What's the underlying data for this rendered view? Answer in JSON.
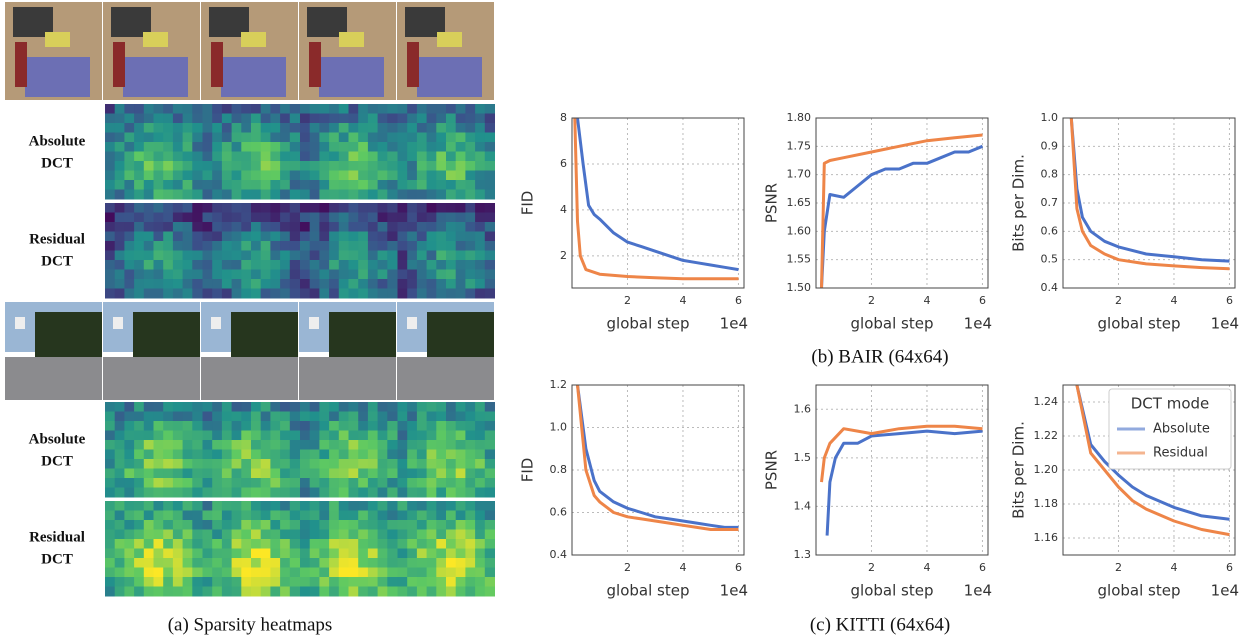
{
  "heatmaps": {
    "caption": "(a) Sparsity heatmaps",
    "row_labels": [
      [
        "Absolute",
        "DCT"
      ],
      [
        "Residual",
        "DCT"
      ],
      [
        "Absolute",
        "DCT"
      ],
      [
        "Residual",
        "DCT"
      ]
    ]
  },
  "captions": [
    "(b) BAIR (64x64)",
    "(c) KITTI (64x64)"
  ],
  "chart_data": [
    {
      "type": "line",
      "ylabel": "FID",
      "xlabel": "global step",
      "x_offset": "1e4",
      "grid": true,
      "xlim": [
        0,
        6.2
      ],
      "xticks": [
        2,
        4,
        6
      ],
      "ylim": [
        0.6,
        8
      ],
      "yticks": [
        2,
        4,
        6,
        8
      ],
      "series": [
        {
          "color": "#4a72c9",
          "x": [
            0.2,
            0.4,
            0.6,
            0.8,
            1,
            1.5,
            2,
            2.5,
            3,
            3.5,
            4,
            4.5,
            5,
            5.5,
            6
          ],
          "values": [
            8,
            6,
            4.2,
            3.8,
            3.6,
            3,
            2.6,
            2.4,
            2.2,
            2,
            1.8,
            1.7,
            1.6,
            1.5,
            1.4
          ]
        },
        {
          "color": "#ee8548",
          "x": [
            0.1,
            0.2,
            0.3,
            0.5,
            1,
            2,
            3,
            4,
            5,
            6
          ],
          "values": [
            8,
            3.5,
            2,
            1.4,
            1.2,
            1.1,
            1.05,
            1.0,
            1.0,
            1.0
          ]
        }
      ]
    },
    {
      "type": "line",
      "ylabel": "PSNR",
      "xlabel": "global step",
      "x_offset": "1e4",
      "grid": true,
      "xlim": [
        0,
        6.2
      ],
      "xticks": [
        2,
        4,
        6
      ],
      "ylim": [
        1.5,
        1.8
      ],
      "yticks": [
        {
          "value": 1.5,
          "label": "1.50"
        },
        1.55,
        {
          "value": 1.6,
          "label": "1.60"
        },
        1.65,
        {
          "value": 1.7,
          "label": "1.70"
        },
        1.75,
        {
          "value": 1.8,
          "label": "1.80"
        }
      ],
      "series": [
        {
          "color": "#4a72c9",
          "x": [
            0.2,
            0.3,
            0.5,
            1,
            1.5,
            2,
            2.5,
            3,
            3.5,
            4,
            4.5,
            5,
            5.5,
            6
          ],
          "values": [
            1.5,
            1.6,
            1.665,
            1.66,
            1.68,
            1.7,
            1.71,
            1.71,
            1.72,
            1.72,
            1.73,
            1.74,
            1.74,
            1.75
          ]
        },
        {
          "color": "#ee8548",
          "x": [
            0.2,
            0.3,
            0.5,
            1,
            2,
            3,
            4,
            5,
            6
          ],
          "values": [
            1.5,
            1.72,
            1.725,
            1.73,
            1.74,
            1.75,
            1.76,
            1.765,
            1.77
          ]
        }
      ]
    },
    {
      "type": "line",
      "ylabel": "Bits per Dim.",
      "xlabel": "global step",
      "x_offset": "1e4",
      "grid": true,
      "xlim": [
        0,
        6.2
      ],
      "xticks": [
        2,
        4,
        6
      ],
      "ylim": [
        0.4,
        1.0
      ],
      "yticks": [
        0.4,
        0.5,
        0.6,
        0.7,
        0.8,
        0.9,
        {
          "value": 1,
          "label": "1.0"
        }
      ],
      "series": [
        {
          "color": "#4a72c9",
          "x": [
            0.3,
            0.5,
            0.7,
            1,
            1.5,
            2,
            3,
            4,
            5,
            6
          ],
          "values": [
            1,
            0.75,
            0.65,
            0.6,
            0.565,
            0.545,
            0.52,
            0.51,
            0.5,
            0.495
          ]
        },
        {
          "color": "#ee8548",
          "x": [
            0.3,
            0.5,
            0.7,
            1,
            1.5,
            2,
            3,
            4,
            5,
            6
          ],
          "values": [
            1,
            0.68,
            0.6,
            0.55,
            0.52,
            0.5,
            0.485,
            0.478,
            0.472,
            0.468
          ]
        }
      ]
    },
    {
      "type": "line",
      "ylabel": "FID",
      "xlabel": "global step",
      "x_offset": "1e4",
      "grid": true,
      "xlim": [
        0,
        6.2
      ],
      "xticks": [
        2,
        4,
        6
      ],
      "ylim": [
        0.4,
        1.2
      ],
      "yticks": [
        0.4,
        0.6,
        0.8,
        {
          "value": 1,
          "label": "1.0"
        },
        1.2
      ],
      "series": [
        {
          "color": "#4a72c9",
          "x": [
            0.2,
            0.5,
            0.8,
            1,
            1.5,
            2,
            2.5,
            3,
            3.5,
            4,
            4.5,
            5,
            5.5,
            6
          ],
          "values": [
            1.2,
            0.9,
            0.75,
            0.7,
            0.65,
            0.62,
            0.6,
            0.58,
            0.57,
            0.56,
            0.55,
            0.54,
            0.53,
            0.53
          ]
        },
        {
          "color": "#ee8548",
          "x": [
            0.2,
            0.5,
            0.8,
            1,
            1.5,
            2,
            2.5,
            3,
            3.5,
            4,
            4.5,
            5,
            5.5,
            6
          ],
          "values": [
            1.2,
            0.8,
            0.68,
            0.65,
            0.6,
            0.58,
            0.57,
            0.56,
            0.55,
            0.54,
            0.53,
            0.52,
            0.52,
            0.52
          ]
        }
      ]
    },
    {
      "type": "line",
      "ylabel": "PSNR",
      "xlabel": "global step",
      "x_offset": "1e4",
      "grid": true,
      "xlim": [
        0,
        6.2
      ],
      "xticks": [
        2,
        4,
        6
      ],
      "ylim": [
        1.3,
        1.65
      ],
      "yticks": [
        1.3,
        1.4,
        1.5,
        1.6
      ],
      "series": [
        {
          "color": "#4a72c9",
          "x": [
            0.4,
            0.5,
            0.7,
            1,
            1.5,
            2,
            3,
            4,
            5,
            6
          ],
          "values": [
            1.34,
            1.45,
            1.5,
            1.53,
            1.53,
            1.545,
            1.55,
            1.555,
            1.55,
            1.555
          ]
        },
        {
          "color": "#ee8548",
          "x": [
            0.2,
            0.3,
            0.5,
            1,
            1.5,
            2,
            3,
            4,
            5,
            6
          ],
          "values": [
            1.45,
            1.5,
            1.53,
            1.56,
            1.555,
            1.55,
            1.56,
            1.565,
            1.565,
            1.56
          ]
        }
      ]
    },
    {
      "type": "line",
      "ylabel": "Bits per Dim.",
      "xlabel": "global step",
      "x_offset": "1e4",
      "grid": true,
      "xlim": [
        0,
        6.2
      ],
      "xticks": [
        2,
        4,
        6
      ],
      "ylim": [
        1.15,
        1.25
      ],
      "yticks": [
        1.16,
        1.18,
        {
          "value": 1.2,
          "label": "1.20"
        },
        1.22,
        1.24
      ],
      "legend": "upper right",
      "legend_title": "DCT mode",
      "series": [
        {
          "name": "Absolute",
          "color": "#4a72c9",
          "x": [
            0.5,
            1,
            1.5,
            2,
            2.5,
            3,
            4,
            5,
            6
          ],
          "values": [
            1.25,
            1.215,
            1.205,
            1.197,
            1.19,
            1.185,
            1.178,
            1.173,
            1.171
          ]
        },
        {
          "name": "Residual",
          "color": "#ee8548",
          "x": [
            0.5,
            1,
            1.5,
            2,
            2.5,
            3,
            4,
            5,
            6
          ],
          "values": [
            1.25,
            1.21,
            1.2,
            1.19,
            1.182,
            1.177,
            1.17,
            1.165,
            1.162
          ]
        }
      ]
    }
  ]
}
